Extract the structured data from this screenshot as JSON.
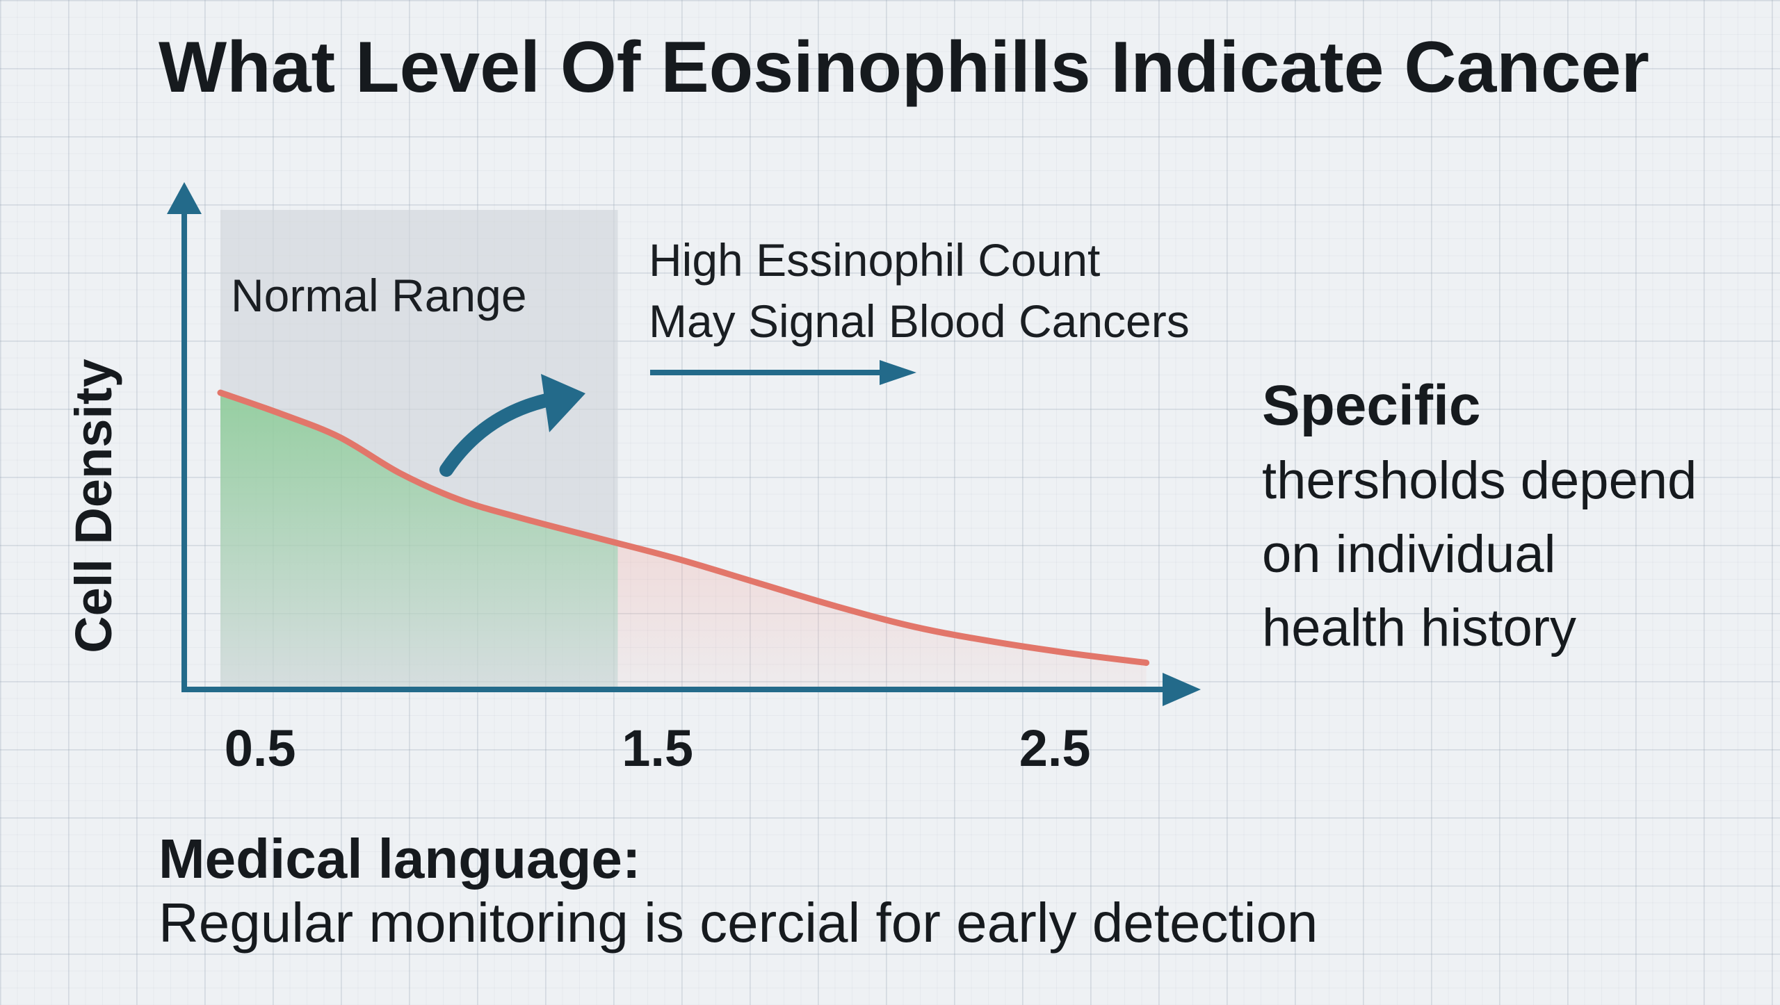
{
  "chart_data": {
    "type": "area",
    "title": "What Level Of Eosinophills Indicate Cancer",
    "xlabel": "",
    "ylabel": "Cell Density",
    "x_ticks": [
      0.5,
      1.5,
      2.5
    ],
    "xlim": [
      0.4,
      2.75
    ],
    "ylim": [
      0,
      1
    ],
    "series": [
      {
        "x": [
          0.4,
          0.55,
          0.7,
          0.85,
          1.0,
          1.15,
          1.35,
          1.55,
          1.75,
          1.95,
          2.15,
          2.35,
          2.55,
          2.73
        ],
        "y": [
          1.0,
          0.93,
          0.85,
          0.73,
          0.64,
          0.58,
          0.51,
          0.44,
          0.36,
          0.28,
          0.21,
          0.16,
          0.12,
          0.09
        ]
      }
    ],
    "regions": [
      {
        "label": "Normal Range",
        "from": 0.4,
        "to": 1.4,
        "color": "#7fc98b"
      },
      {
        "label": "",
        "from": 1.4,
        "to": 2.73,
        "color": "#f2a9a1"
      }
    ],
    "annotations": [
      {
        "text_lines": [
          "High Essinophil Count",
          "May Signal Blood Cancers"
        ]
      }
    ],
    "grid": true,
    "legend": "none",
    "colors": {
      "line": "#e2766a",
      "axis": "#236a8a",
      "shade": "#cfd3d8"
    }
  },
  "side_note": {
    "heading": "Specific",
    "body_lines": [
      "thersholds depend",
      "on individual",
      "health history"
    ]
  },
  "footer": {
    "heading": "Medical language:",
    "body": "Regular monitoring is cercial for early detection"
  }
}
